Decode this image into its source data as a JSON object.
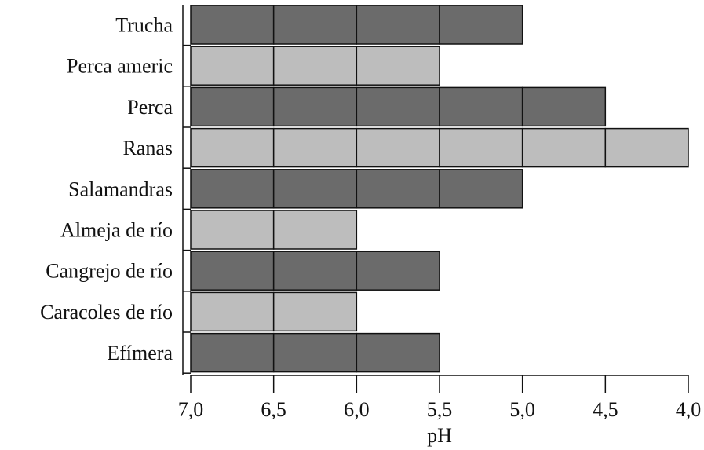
{
  "chart_data": {
    "type": "bar",
    "orientation": "horizontal",
    "categories": [
      "Trucha",
      "Perca americ",
      "Perca",
      "Ranas",
      "Salamandras",
      "Almeja de río",
      "Cangrejo de río",
      "Caracoles de río",
      "Efímera"
    ],
    "values": [
      5.0,
      5.5,
      4.5,
      4.0,
      5.0,
      6.0,
      5.5,
      6.0,
      5.5
    ],
    "xlabel": "pH",
    "xlim": [
      7.0,
      4.0
    ],
    "xaxis_reversed": true,
    "xticks": [
      7.0,
      6.5,
      6.0,
      5.5,
      5.0,
      4.5,
      4.0
    ],
    "xtick_labels": [
      "7,0",
      "6,5",
      "6,0",
      "5,5",
      "5,0",
      "4,5",
      "4,0"
    ],
    "segment_step": 0.5,
    "grid": false,
    "colors": {
      "dark": "#6b6b6b",
      "light": "#bdbdbd",
      "stroke": "#111111"
    }
  }
}
